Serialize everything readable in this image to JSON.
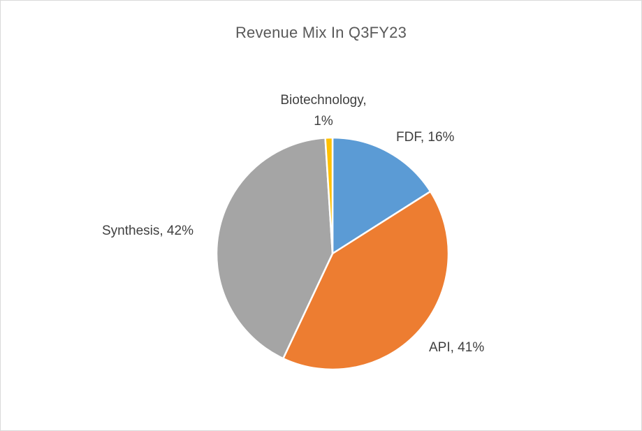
{
  "chart_data": {
    "type": "pie",
    "title": "Revenue Mix In Q3FY23",
    "slices": [
      {
        "name": "FDF",
        "value": 16,
        "label": "FDF, 16%",
        "color": "#5b9bd5"
      },
      {
        "name": "API",
        "value": 41,
        "label": "API, 41%",
        "color": "#ed7d31"
      },
      {
        "name": "Synthesis",
        "value": 42,
        "label": "Synthesis, 42%",
        "color": "#a5a5a5"
      },
      {
        "name": "Biotechnology",
        "value": 1,
        "label_lines": [
          "Biotechnology,",
          "1%"
        ],
        "color": "#ffc000"
      }
    ],
    "legend": "none"
  }
}
